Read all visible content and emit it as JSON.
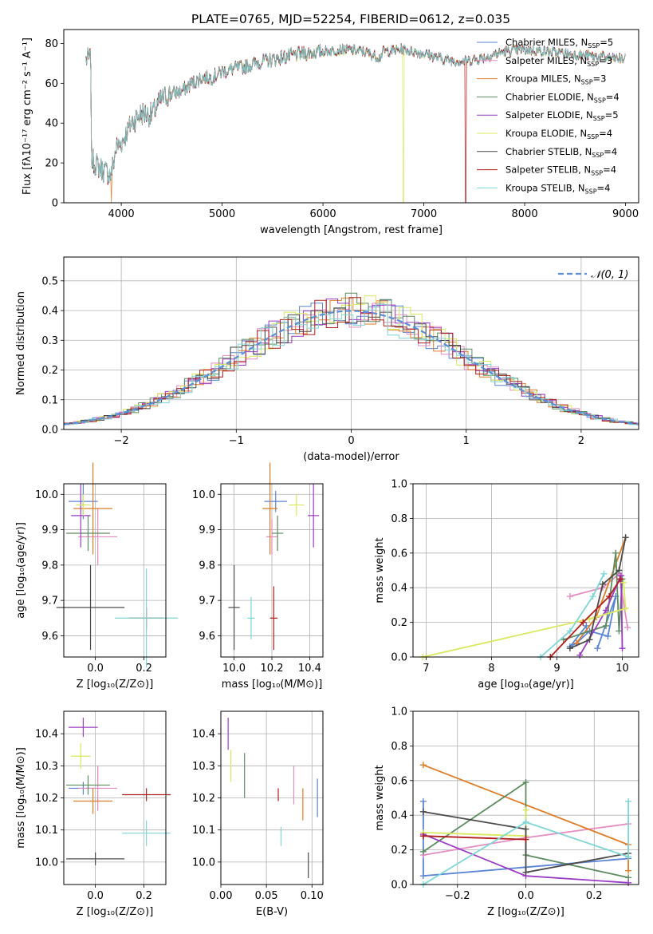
{
  "figure": {
    "title": "PLATE=0765, MJD=52254, FIBERID=0612, z=0.035"
  },
  "models": [
    {
      "name": "Chabrier MILES",
      "nssp": "5",
      "color": "#5b84d6"
    },
    {
      "name": "Salpeter MILES",
      "nssp": "3",
      "color": "#e48cc1"
    },
    {
      "name": "Kroupa MILES",
      "nssp": "3",
      "color": "#df7c27"
    },
    {
      "name": "Chabrier ELODIE",
      "nssp": "4",
      "color": "#5e8c60"
    },
    {
      "name": "Salpeter ELODIE",
      "nssp": "5",
      "color": "#9b3cc4"
    },
    {
      "name": "Kroupa ELODIE",
      "nssp": "4",
      "color": "#d9e85d"
    },
    {
      "name": "Chabrier STELIB",
      "nssp": "4",
      "color": "#4a4a4a"
    },
    {
      "name": "Salpeter STELIB",
      "nssp": "4",
      "color": "#b01e1e"
    },
    {
      "name": "Kroupa STELIB",
      "nssp": "4",
      "color": "#7fd6d6"
    }
  ],
  "chart_data": [
    {
      "id": "spectrum",
      "type": "line",
      "xlabel": "wavelength [Angstrom, rest frame]",
      "ylabel": "Flux [fλ10⁻¹⁷ erg cm⁻² s⁻¹ A⁻¹]",
      "xlim": [
        3430,
        9130
      ],
      "ylim": [
        0,
        87
      ],
      "xticks": [
        4000,
        5000,
        6000,
        7000,
        8000,
        9000
      ],
      "yticks": [
        0,
        20,
        40,
        60,
        80
      ],
      "grid": false,
      "legend": "top-right",
      "anchors": [
        [
          3700,
          22
        ],
        [
          3800,
          17
        ],
        [
          3900,
          14
        ],
        [
          3950,
          28
        ],
        [
          4000,
          30
        ],
        [
          4100,
          40
        ],
        [
          4200,
          45
        ],
        [
          4300,
          44
        ],
        [
          4400,
          52
        ],
        [
          4500,
          55
        ],
        [
          4600,
          56
        ],
        [
          4700,
          60
        ],
        [
          4800,
          63
        ],
        [
          4900,
          63
        ],
        [
          5000,
          66
        ],
        [
          5200,
          68
        ],
        [
          5400,
          71
        ],
        [
          5600,
          73
        ],
        [
          5800,
          75
        ],
        [
          6000,
          76
        ],
        [
          6200,
          77
        ],
        [
          6400,
          76
        ],
        [
          6563,
          73
        ],
        [
          6600,
          76
        ],
        [
          6800,
          77
        ],
        [
          7000,
          75
        ],
        [
          7200,
          72
        ],
        [
          7400,
          71
        ],
        [
          7600,
          73
        ],
        [
          7800,
          76
        ],
        [
          8000,
          77
        ],
        [
          8200,
          76
        ],
        [
          8400,
          75
        ],
        [
          8600,
          74
        ],
        [
          8800,
          73
        ],
        [
          9000,
          72
        ]
      ]
    },
    {
      "id": "residuals",
      "type": "histogram",
      "xlabel": "(data-model)/error",
      "ylabel": "Normed distribution",
      "xlim": [
        -2.5,
        2.5
      ],
      "ylim": [
        0,
        0.58
      ],
      "xticks": [
        -2,
        -1,
        0,
        1,
        2
      ],
      "yticks": [
        0.0,
        0.1,
        0.2,
        0.3,
        0.4,
        0.5
      ],
      "grid": true,
      "legend_label": "𝒩(0, 1)",
      "legend": "top-right",
      "bin_width": 0.1,
      "mean": 0,
      "sigma": 1
    },
    {
      "id": "age-vs-Z",
      "type": "errorbar",
      "xlabel": "Z [log₁₀(Z/Z⊙)]",
      "ylabel": "age  [log₁₀(age/yr)]",
      "xlim": [
        -0.13,
        0.29
      ],
      "ylim": [
        9.54,
        10.03
      ],
      "xticks": [
        0.0,
        0.2
      ],
      "yticks": [
        9.6,
        9.7,
        9.8,
        9.9,
        10.0
      ],
      "points": [
        {
          "model": 0,
          "x": -0.05,
          "y": 9.98,
          "xerr": 0.06,
          "yerr": 0.05
        },
        {
          "model": 1,
          "x": 0.01,
          "y": 9.88,
          "xerr": 0.08,
          "yerr": 0.08
        },
        {
          "model": 2,
          "x": -0.01,
          "y": 9.96,
          "xerr": 0.08,
          "yerr": 0.13
        },
        {
          "model": 3,
          "x": -0.03,
          "y": 9.89,
          "xerr": 0.09,
          "yerr": 0.05
        },
        {
          "model": 4,
          "x": -0.06,
          "y": 9.94,
          "xerr": 0.04,
          "yerr": 0.09
        },
        {
          "model": 5,
          "x": -0.05,
          "y": 9.97,
          "xerr": 0.03,
          "yerr": 0.03
        },
        {
          "model": 6,
          "x": -0.02,
          "y": 9.68,
          "xerr": 0.14,
          "yerr": 0.12
        },
        {
          "model": 7,
          "x": 0.21,
          "y": 9.65,
          "xerr": 0.07,
          "yerr": 0.03
        },
        {
          "model": 8,
          "x": 0.21,
          "y": 9.65,
          "xerr": 0.13,
          "yerr": 0.14
        }
      ]
    },
    {
      "id": "age-vs-mass",
      "type": "errorbar",
      "xlabel": "mass [log₁₀(M/M⊙)]",
      "ylabel": "",
      "xlim": [
        9.93,
        10.47
      ],
      "ylim": [
        9.54,
        10.03
      ],
      "xticks": [
        10.0,
        10.2,
        10.4
      ],
      "yticks": [
        9.6,
        9.7,
        9.8,
        9.9,
        10.0
      ],
      "points": [
        {
          "model": 0,
          "x": 10.22,
          "y": 9.98,
          "xerr": 0.06,
          "yerr": 0.03
        },
        {
          "model": 1,
          "x": 10.2,
          "y": 9.88,
          "xerr": 0.03,
          "yerr": 0.05
        },
        {
          "model": 2,
          "x": 10.19,
          "y": 9.96,
          "xerr": 0.04,
          "yerr": 0.13
        },
        {
          "model": 3,
          "x": 10.23,
          "y": 9.89,
          "xerr": 0.03,
          "yerr": 0.05
        },
        {
          "model": 4,
          "x": 10.42,
          "y": 9.94,
          "xerr": 0.03,
          "yerr": 0.09
        },
        {
          "model": 5,
          "x": 10.33,
          "y": 9.97,
          "xerr": 0.04,
          "yerr": 0.03
        },
        {
          "model": 6,
          "x": 10.0,
          "y": 9.68,
          "xerr": 0.03,
          "yerr": 0.12
        },
        {
          "model": 7,
          "x": 10.21,
          "y": 9.65,
          "xerr": 0.02,
          "yerr": 0.09
        },
        {
          "model": 8,
          "x": 10.09,
          "y": 9.65,
          "xerr": 0.02,
          "yerr": 0.06
        }
      ]
    },
    {
      "id": "weight-vs-age",
      "type": "line",
      "xlabel": "age  [log₁₀(age/yr)]",
      "ylabel": "mass weight",
      "xlim": [
        6.8,
        10.25
      ],
      "ylim": [
        0,
        1
      ],
      "xticks": [
        7,
        8,
        9,
        10
      ],
      "yticks": [
        0.0,
        0.2,
        0.4,
        0.6,
        0.8,
        1.0
      ],
      "series": [
        {
          "model": 0,
          "points": [
            [
              9.62,
              0.05
            ],
            [
              9.9,
              0.35
            ],
            [
              9.78,
              0.12
            ],
            [
              9.5,
              0.15
            ],
            [
              9.3,
              0.08
            ],
            [
              9.2,
              0.06
            ],
            [
              9.45,
              0.18
            ]
          ]
        },
        {
          "model": 1,
          "points": [
            [
              9.2,
              0.35
            ],
            [
              9.7,
              0.4
            ],
            [
              9.95,
              0.48
            ],
            [
              10.08,
              0.17
            ]
          ]
        },
        {
          "model": 2,
          "points": [
            [
              9.3,
              0.08
            ],
            [
              9.6,
              0.23
            ],
            [
              10.05,
              0.69
            ]
          ]
        },
        {
          "model": 3,
          "points": [
            [
              9.1,
              0.1
            ],
            [
              9.75,
              0.18
            ],
            [
              9.9,
              0.6
            ],
            [
              9.95,
              0.15
            ],
            [
              10.0,
              0.45
            ]
          ]
        },
        {
          "model": 4,
          "points": [
            [
              9.35,
              0.01
            ],
            [
              9.75,
              0.27
            ],
            [
              9.98,
              0.47
            ],
            [
              10.0,
              0.05
            ]
          ]
        },
        {
          "model": 5,
          "points": [
            [
              6.95,
              0.0
            ],
            [
              9.5,
              0.22
            ],
            [
              10.05,
              0.28
            ],
            [
              10.02,
              0.43
            ]
          ]
        },
        {
          "model": 6,
          "points": [
            [
              9.2,
              0.05
            ],
            [
              9.5,
              0.1
            ],
            [
              9.7,
              0.42
            ],
            [
              9.95,
              0.5
            ],
            [
              10.05,
              0.69
            ]
          ]
        },
        {
          "model": 7,
          "points": [
            [
              8.9,
              0.0
            ],
            [
              9.4,
              0.2
            ],
            [
              9.8,
              0.35
            ],
            [
              9.97,
              0.45
            ]
          ]
        },
        {
          "model": 8,
          "points": [
            [
              8.75,
              0.0
            ],
            [
              9.2,
              0.15
            ],
            [
              9.55,
              0.35
            ],
            [
              9.72,
              0.48
            ]
          ]
        }
      ]
    },
    {
      "id": "mass-vs-Z",
      "type": "errorbar",
      "xlabel": "Z [log₁₀(Z/Z⊙)]",
      "ylabel": "mass [log₁₀(M/M⊙)]",
      "xlim": [
        -0.13,
        0.29
      ],
      "ylim": [
        9.93,
        10.47
      ],
      "xticks": [
        0.0,
        0.2
      ],
      "yticks": [
        10.0,
        10.1,
        10.2,
        10.3,
        10.4
      ],
      "points": [
        {
          "model": 0,
          "x": -0.05,
          "y": 10.23,
          "xerr": 0.06,
          "yerr": 0.02
        },
        {
          "model": 1,
          "x": 0.01,
          "y": 10.23,
          "xerr": 0.08,
          "yerr": 0.07
        },
        {
          "model": 2,
          "x": -0.01,
          "y": 10.19,
          "xerr": 0.08,
          "yerr": 0.04
        },
        {
          "model": 3,
          "x": -0.03,
          "y": 10.24,
          "xerr": 0.09,
          "yerr": 0.03
        },
        {
          "model": 4,
          "x": -0.05,
          "y": 10.42,
          "xerr": 0.06,
          "yerr": 0.03
        },
        {
          "model": 5,
          "x": -0.06,
          "y": 10.33,
          "xerr": 0.04,
          "yerr": 0.04
        },
        {
          "model": 6,
          "x": -0.0,
          "y": 10.01,
          "xerr": 0.12,
          "yerr": 0.02
        },
        {
          "model": 7,
          "x": 0.21,
          "y": 10.21,
          "xerr": 0.1,
          "yerr": 0.02
        },
        {
          "model": 8,
          "x": 0.21,
          "y": 10.09,
          "xerr": 0.1,
          "yerr": 0.04
        }
      ]
    },
    {
      "id": "mass-vs-ebv",
      "type": "errorbar",
      "xlabel": "E(B-V)",
      "ylabel": "",
      "xlim": [
        0.0,
        0.112
      ],
      "ylim": [
        9.93,
        10.47
      ],
      "xticks": [
        0.0,
        0.05,
        0.1
      ],
      "yticks": [
        10.0,
        10.1,
        10.2,
        10.3,
        10.4
      ],
      "points": [
        {
          "model": 0,
          "x": 0.106,
          "y": 10.2,
          "xerr": 0,
          "yerr": 0.06
        },
        {
          "model": 1,
          "x": 0.08,
          "y": 10.24,
          "xerr": 0,
          "yerr": 0.06
        },
        {
          "model": 2,
          "x": 0.09,
          "y": 10.18,
          "xerr": 0,
          "yerr": 0.05
        },
        {
          "model": 3,
          "x": 0.026,
          "y": 10.27,
          "xerr": 0,
          "yerr": 0.07
        },
        {
          "model": 4,
          "x": 0.008,
          "y": 10.4,
          "xerr": 0,
          "yerr": 0.05
        },
        {
          "model": 5,
          "x": 0.011,
          "y": 10.3,
          "xerr": 0,
          "yerr": 0.05
        },
        {
          "model": 6,
          "x": 0.096,
          "y": 9.99,
          "xerr": 0,
          "yerr": 0.04
        },
        {
          "model": 7,
          "x": 0.063,
          "y": 10.21,
          "xerr": 0,
          "yerr": 0.02
        },
        {
          "model": 8,
          "x": 0.066,
          "y": 10.08,
          "xerr": 0,
          "yerr": 0.03
        }
      ]
    },
    {
      "id": "weight-vs-Z",
      "type": "line",
      "xlabel": "Z [log₁₀(Z/Z⊙)]",
      "ylabel": "mass weight",
      "xlim": [
        -0.33,
        0.33
      ],
      "ylim": [
        0,
        1
      ],
      "xticks": [
        -0.2,
        0.0,
        0.2
      ],
      "yticks": [
        0.0,
        0.2,
        0.4,
        0.6,
        0.8,
        1.0
      ],
      "series": [
        {
          "model": 0,
          "points": [
            [
              -0.3,
              0.48
            ],
            [
              -0.3,
              0.05
            ],
            [
              0.0,
              0.1
            ],
            [
              0.3,
              0.15
            ]
          ]
        },
        {
          "model": 1,
          "points": [
            [
              -0.3,
              0.17
            ],
            [
              0.0,
              0.27
            ],
            [
              0.3,
              0.35
            ]
          ]
        },
        {
          "model": 2,
          "points": [
            [
              -0.3,
              0.69
            ],
            [
              0.3,
              0.23
            ],
            [
              0.3,
              0.08
            ]
          ]
        },
        {
          "model": 3,
          "points": [
            [
              -0.3,
              0.19
            ],
            [
              0.0,
              0.59
            ],
            [
              0.0,
              0.17
            ],
            [
              0.3,
              0.04
            ]
          ]
        },
        {
          "model": 4,
          "points": [
            [
              -0.3,
              0.29
            ],
            [
              0.0,
              0.05
            ],
            [
              0.3,
              0.01
            ]
          ]
        },
        {
          "model": 5,
          "points": [
            [
              -0.3,
              0.3
            ],
            [
              0.0,
              0.28
            ],
            [
              0.0,
              0.43
            ]
          ]
        },
        {
          "model": 6,
          "points": [
            [
              -0.3,
              0.42
            ],
            [
              0.0,
              0.32
            ],
            [
              0.0,
              0.07
            ],
            [
              0.3,
              0.18
            ]
          ]
        },
        {
          "model": 7,
          "points": [
            [
              -0.3,
              0.28
            ],
            [
              0.0,
              0.26
            ]
          ]
        },
        {
          "model": 8,
          "points": [
            [
              -0.3,
              0.0
            ],
            [
              0.0,
              0.36
            ],
            [
              0.3,
              0.16
            ],
            [
              0.3,
              0.48
            ]
          ]
        }
      ]
    }
  ]
}
